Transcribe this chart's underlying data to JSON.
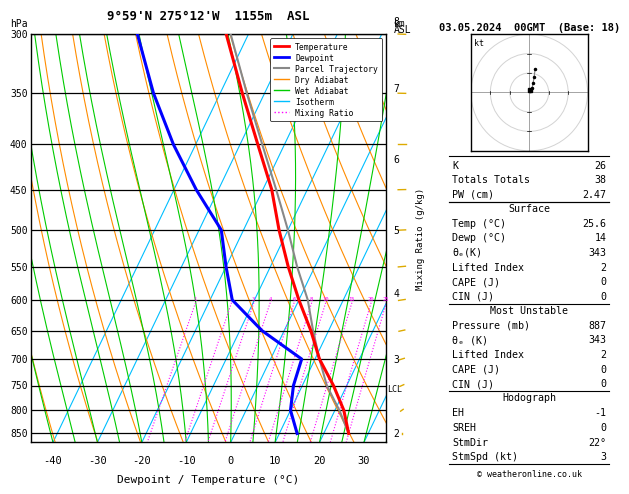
{
  "title_left": "9°59'N 275°12'W  1155m  ASL",
  "title_right": "03.05.2024  00GMT  (Base: 18)",
  "xlabel": "Dewpoint / Temperature (°C)",
  "background_color": "#ffffff",
  "pressure_levels": [
    300,
    350,
    400,
    450,
    500,
    550,
    600,
    650,
    700,
    750,
    800,
    850
  ],
  "pressure_min": 300,
  "pressure_max": 870,
  "temp_min": -45,
  "temp_max": 35,
  "isotherms": [
    -40,
    -30,
    -20,
    -10,
    0,
    10,
    20,
    30
  ],
  "isotherm_color": "#00bfff",
  "dry_adiabat_color": "#ff8c00",
  "wet_adiabat_color": "#00cc00",
  "mixing_ratio_color": "#ff00ff",
  "mixing_ratio_values": [
    1,
    2,
    3,
    4,
    6,
    8,
    10,
    15,
    20,
    25
  ],
  "temp_profile_p": [
    850,
    800,
    750,
    700,
    650,
    600,
    550,
    500,
    450,
    400,
    350,
    300
  ],
  "temp_profile_t": [
    25.6,
    22.0,
    17.0,
    11.0,
    6.0,
    0.0,
    -6.0,
    -12.0,
    -18.0,
    -26.0,
    -35.0,
    -45.0
  ],
  "dewp_profile_p": [
    850,
    800,
    750,
    700,
    650,
    600,
    550,
    500,
    450,
    400,
    350,
    300
  ],
  "dewp_profile_t": [
    14.0,
    10.0,
    8.0,
    7.0,
    -5.0,
    -15.0,
    -20.0,
    -25.0,
    -35.0,
    -45.0,
    -55.0,
    -65.0
  ],
  "parcel_profile_p": [
    850,
    800,
    750,
    700,
    650,
    600,
    550,
    500,
    450,
    400,
    350,
    300
  ],
  "parcel_profile_t": [
    25.6,
    21.0,
    15.5,
    11.0,
    6.5,
    2.0,
    -4.0,
    -10.0,
    -17.0,
    -25.0,
    -34.0,
    -44.0
  ],
  "temp_color": "#ff0000",
  "dewp_color": "#0000ff",
  "parcel_color": "#888888",
  "lcl_pressure": 755,
  "km_ticks": [
    2,
    3,
    4,
    5,
    6,
    7,
    8
  ],
  "km_pressures": [
    850,
    700,
    590,
    500,
    415,
    345,
    290
  ],
  "info_K": 26,
  "info_TT": 38,
  "info_PW": "2.47",
  "surf_temp": "25.6",
  "surf_dewp": "14",
  "surf_theta_e": "343",
  "surf_LI": "2",
  "surf_CAPE": "0",
  "surf_CIN": "0",
  "mu_pressure": "887",
  "mu_theta_e": "343",
  "mu_LI": "2",
  "mu_CAPE": "0",
  "mu_CIN": "0",
  "hodo_EH": "-1",
  "hodo_SREH": "0",
  "hodo_StmDir": "22°",
  "hodo_StmSpd": "3",
  "copyright": "© weatheronline.co.uk",
  "wind_barb_color": "#008000",
  "skew": 0.55,
  "legend_labels": [
    "Temperature",
    "Dewpoint",
    "Parcel Trajectory",
    "Dry Adiabat",
    "Wet Adiabat",
    "Isotherm",
    "Mixing Ratio"
  ],
  "legend_colors": [
    "#ff0000",
    "#0000ff",
    "#888888",
    "#ff8c00",
    "#00cc00",
    "#00bfff",
    "#ff00ff"
  ],
  "legend_styles": [
    "-",
    "-",
    "-",
    "-",
    "-",
    "-",
    ":"
  ],
  "legend_widths": [
    2,
    2,
    1.5,
    1,
    1,
    1,
    1
  ]
}
